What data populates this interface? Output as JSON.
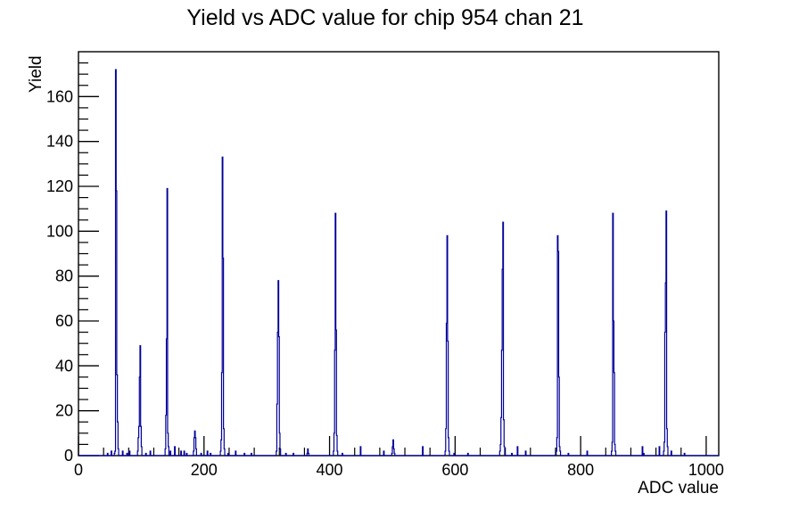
{
  "chart_data": {
    "type": "histogram",
    "title": "Yield vs ADC value for chip 954 chan 21",
    "xlabel": "ADC value",
    "ylabel": "Yield",
    "xlim": [
      0,
      1020
    ],
    "ylim": [
      0,
      180
    ],
    "x_major_ticks": [
      0,
      200,
      400,
      600,
      800,
      1000
    ],
    "x_minor_step": 40,
    "y_major_ticks": [
      0,
      20,
      40,
      60,
      80,
      100,
      120,
      140,
      160
    ],
    "y_minor_step": 5,
    "grid": "off",
    "legend": "none",
    "line_color": "#000099",
    "axis_color": "#000000",
    "bins": [
      [
        46,
        1
      ],
      [
        52,
        2
      ],
      [
        57,
        1
      ],
      [
        58,
        2
      ],
      [
        59,
        172
      ],
      [
        60,
        118
      ],
      [
        61,
        36
      ],
      [
        62,
        15
      ],
      [
        63,
        3
      ],
      [
        70,
        2
      ],
      [
        77,
        1
      ],
      [
        81,
        2
      ],
      [
        94,
        2
      ],
      [
        95,
        8
      ],
      [
        96,
        13
      ],
      [
        97,
        35
      ],
      [
        98,
        49
      ],
      [
        99,
        13
      ],
      [
        100,
        4
      ],
      [
        107,
        1
      ],
      [
        114,
        2
      ],
      [
        138,
        3
      ],
      [
        139,
        18
      ],
      [
        140,
        52
      ],
      [
        141,
        119
      ],
      [
        142,
        10
      ],
      [
        143,
        4
      ],
      [
        146,
        2
      ],
      [
        153,
        4
      ],
      [
        163,
        2
      ],
      [
        168,
        2
      ],
      [
        172,
        1
      ],
      [
        183,
        2
      ],
      [
        184,
        8
      ],
      [
        185,
        11
      ],
      [
        186,
        8
      ],
      [
        187,
        3
      ],
      [
        195,
        1
      ],
      [
        205,
        2
      ],
      [
        210,
        1
      ],
      [
        226,
        2
      ],
      [
        227,
        7
      ],
      [
        228,
        37
      ],
      [
        229,
        133
      ],
      [
        230,
        88
      ],
      [
        231,
        12
      ],
      [
        232,
        3
      ],
      [
        238,
        1
      ],
      [
        250,
        2
      ],
      [
        264,
        1
      ],
      [
        275,
        1
      ],
      [
        315,
        2
      ],
      [
        316,
        23
      ],
      [
        317,
        55
      ],
      [
        318,
        78
      ],
      [
        319,
        53
      ],
      [
        320,
        10
      ],
      [
        321,
        3
      ],
      [
        330,
        1
      ],
      [
        342,
        1
      ],
      [
        364,
        1
      ],
      [
        365,
        3
      ],
      [
        366,
        1
      ],
      [
        406,
        2
      ],
      [
        407,
        10
      ],
      [
        408,
        47
      ],
      [
        409,
        108
      ],
      [
        410,
        56
      ],
      [
        411,
        9
      ],
      [
        412,
        2
      ],
      [
        420,
        1
      ],
      [
        449,
        4
      ],
      [
        486,
        2
      ],
      [
        499,
        1
      ],
      [
        500,
        4
      ],
      [
        501,
        7
      ],
      [
        502,
        3
      ],
      [
        503,
        1
      ],
      [
        548,
        4
      ],
      [
        584,
        2
      ],
      [
        585,
        12
      ],
      [
        586,
        59
      ],
      [
        587,
        98
      ],
      [
        588,
        51
      ],
      [
        589,
        8
      ],
      [
        590,
        2
      ],
      [
        598,
        1
      ],
      [
        620,
        1
      ],
      [
        671,
        2
      ],
      [
        672,
        5
      ],
      [
        673,
        17
      ],
      [
        674,
        47
      ],
      [
        675,
        83
      ],
      [
        676,
        104
      ],
      [
        677,
        16
      ],
      [
        678,
        4
      ],
      [
        690,
        1
      ],
      [
        699,
        4
      ],
      [
        712,
        2
      ],
      [
        761,
        2
      ],
      [
        762,
        8
      ],
      [
        763,
        98
      ],
      [
        764,
        91
      ],
      [
        765,
        35
      ],
      [
        766,
        4
      ],
      [
        767,
        2
      ],
      [
        780,
        1
      ],
      [
        810,
        2
      ],
      [
        849,
        2
      ],
      [
        850,
        6
      ],
      [
        851,
        108
      ],
      [
        852,
        60
      ],
      [
        853,
        37
      ],
      [
        854,
        5
      ],
      [
        855,
        2
      ],
      [
        898,
        4
      ],
      [
        900,
        1
      ],
      [
        925,
        4
      ],
      [
        932,
        2
      ],
      [
        933,
        6
      ],
      [
        934,
        55
      ],
      [
        935,
        77
      ],
      [
        936,
        109
      ],
      [
        937,
        12
      ],
      [
        938,
        4
      ],
      [
        944,
        2
      ],
      [
        965,
        1
      ]
    ]
  }
}
